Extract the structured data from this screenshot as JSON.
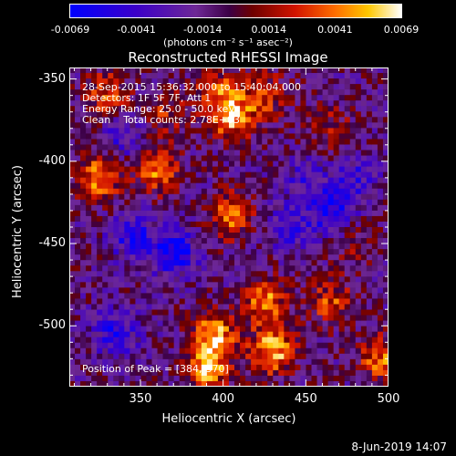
{
  "colorbar": {
    "ticks": [
      "-0.0069",
      "-0.0041",
      "-0.0014",
      "0.0014",
      "0.0041",
      "0.0069"
    ],
    "unit_label": "(photons cm⁻² s⁻¹ asec⁻²)",
    "range": [
      -0.0069,
      0.0069
    ]
  },
  "chart_data": {
    "type": "heatmap",
    "title": "Reconstructed RHESSI Image",
    "xlabel": "Heliocentric X (arcsec)",
    "ylabel": "Heliocentric Y (arcsec)",
    "xlim": [
      307,
      500
    ],
    "ylim": [
      -537,
      -343
    ],
    "x_ticks": [
      "350",
      "400",
      "450",
      "500"
    ],
    "y_ticks": [
      "-350",
      "-400",
      "-450",
      "-500"
    ],
    "x_tick_values": [
      350,
      400,
      450,
      500
    ],
    "y_tick_values": [
      -350,
      -400,
      -450,
      -500
    ],
    "colormap": "rainbow-like blue-purple-red-yellow-white",
    "annotations": {
      "line1": "28-Sep-2015 15:36:32.000 to 15:40:04.000",
      "line2": "Detectors: 1F 5F 7F, Att 1",
      "line3": "Energy Range: 25.0 - 50.0 keV",
      "line4": "Clean    Total counts: 2.78E+03",
      "peak": "Position of Peak = [384,-370]"
    },
    "blobs": [
      {
        "x": 330,
        "y": -360,
        "value": 0.0045
      },
      {
        "x": 325,
        "y": -410,
        "value": 0.006
      },
      {
        "x": 360,
        "y": -405,
        "value": 0.0055
      },
      {
        "x": 365,
        "y": -370,
        "value": 0.003
      },
      {
        "x": 395,
        "y": -355,
        "value": 0.0035
      },
      {
        "x": 405,
        "y": -372,
        "value": 0.0068
      },
      {
        "x": 425,
        "y": -360,
        "value": 0.004
      },
      {
        "x": 405,
        "y": -433,
        "value": 0.005
      },
      {
        "x": 395,
        "y": -505,
        "value": 0.006
      },
      {
        "x": 390,
        "y": -525,
        "value": 0.0065
      },
      {
        "x": 425,
        "y": -485,
        "value": 0.0055
      },
      {
        "x": 430,
        "y": -515,
        "value": 0.0068
      },
      {
        "x": 450,
        "y": -410,
        "value": -0.0025
      },
      {
        "x": 465,
        "y": -380,
        "value": 0.0025
      },
      {
        "x": 465,
        "y": -485,
        "value": 0.004
      },
      {
        "x": 495,
        "y": -520,
        "value": 0.005
      },
      {
        "x": 480,
        "y": -450,
        "value": 0.002
      },
      {
        "x": 345,
        "y": -445,
        "value": -0.004
      },
      {
        "x": 370,
        "y": -455,
        "value": -0.0055
      },
      {
        "x": 335,
        "y": -505,
        "value": -0.004
      },
      {
        "x": 465,
        "y": -430,
        "value": -0.0045
      },
      {
        "x": 480,
        "y": -410,
        "value": -0.003
      },
      {
        "x": 340,
        "y": -385,
        "value": -0.003
      },
      {
        "x": 440,
        "y": -440,
        "value": -0.0035
      }
    ]
  },
  "footer": "8-Jun-2019 14:07"
}
